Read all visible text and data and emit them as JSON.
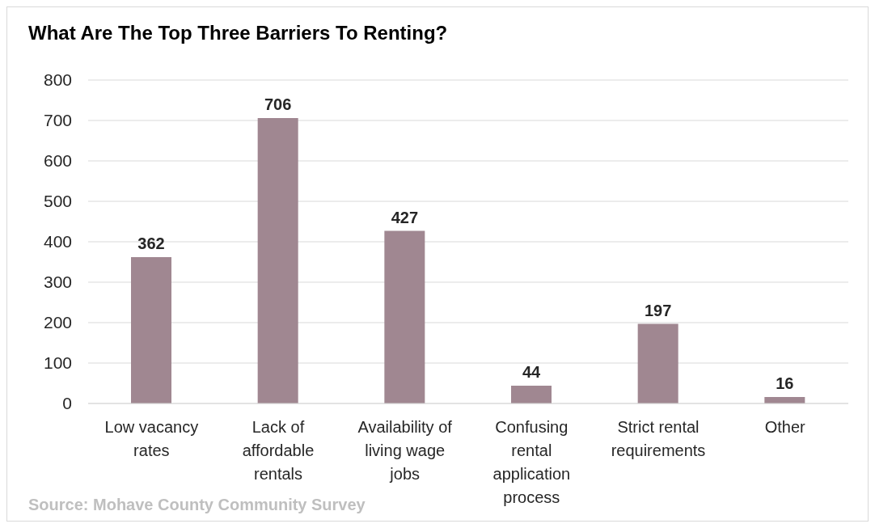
{
  "chart_data": {
    "type": "bar",
    "title": "What Are The Top Three Barriers To Renting?",
    "categories": [
      "Low vacancy rates",
      "Lack of affordable rentals",
      "Availability of living wage jobs",
      "Confusing rental application process",
      "Strict rental requirements",
      "Other"
    ],
    "values": [
      362,
      706,
      427,
      44,
      197,
      16
    ],
    "color": "#a08791",
    "ylim": [
      0,
      800
    ],
    "yticks": [
      0,
      100,
      200,
      300,
      400,
      500,
      600,
      700,
      800
    ],
    "grid": "y",
    "data_labels": true,
    "annotations": [
      "Source: Mohave County Community Survey"
    ]
  }
}
